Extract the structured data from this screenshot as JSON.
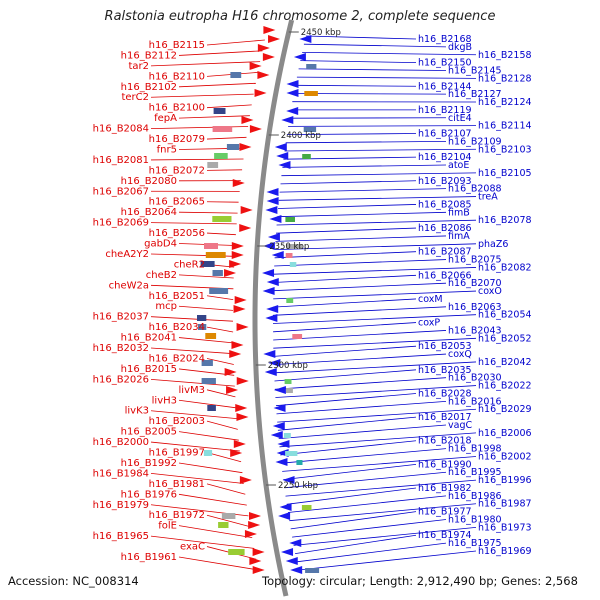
{
  "title": "Ralstonia eutropha H16 chromosome 2, complete sequence",
  "footer": {
    "accession": "Accession: NC_008314",
    "topology": "Topology: circular; Length: 2,912,490 bp; Genes: 2,568"
  },
  "colors": {
    "forward_label": "#dd0000",
    "reverse_label": "#0000cc",
    "forward_arrow": "#ee1111",
    "reverse_arrow": "#1a1aee",
    "backbone": "#8a8a8a",
    "tick_label": "#222222"
  },
  "ticks": [
    {
      "label": "2450 kbp"
    },
    {
      "label": "2400 kbp"
    },
    {
      "label": "2350 kbp"
    },
    {
      "label": "2300 kbp"
    },
    {
      "label": "2250 kbp"
    }
  ],
  "forward_labels": [
    "h16_B2115",
    "h16_B2112",
    "tar2",
    "h16_B2110",
    "h16_B2102",
    "terC2",
    "h16_B2100",
    "fepA",
    "h16_B2084",
    "h16_B2079",
    "fnr5",
    "h16_B2081",
    "h16_B2072",
    "h16_B2080",
    "h16_B2067",
    "h16_B2065",
    "h16_B2064",
    "h16_B2069",
    "h16_B2056",
    "gabD4",
    "cheA2Y2",
    "cheR2",
    "cheB2",
    "cheW2a",
    "h16_B2051",
    "mcp",
    "h16_B2037",
    "h16_B2034",
    "h16_B2041",
    "h16_B2032",
    "h16_B2024",
    "h16_B2015",
    "h16_B2026",
    "livM3",
    "livH3",
    "livK3",
    "h16_B2003",
    "h16_B2005",
    "h16_B2000",
    "h16_B1997",
    "h16_B1992",
    "h16_B1984",
    "h16_B1981",
    "h16_B1976",
    "h16_B1979",
    "h16_B1972",
    "folE",
    "h16_B1965",
    "exaC",
    "h16_B1961"
  ],
  "reverse_labels": [
    "h16_B2168",
    "dkgB",
    "h16_B2158",
    "h16_B2150",
    "h16_B2145",
    "h16_B2128",
    "h16_B2144",
    "h16_B2127",
    "h16_B2124",
    "h16_B2119",
    "citE4",
    "h16_B2114",
    "h16_B2107",
    "h16_B2109",
    "h16_B2103",
    "h16_B2104",
    "atoE",
    "h16_B2105",
    "h16_B2093",
    "h16_B2088",
    "treA",
    "h16_B2085",
    "fimB",
    "h16_B2078",
    "h16_B2086",
    "fimA",
    "phaZ6",
    "h16_B2087",
    "h16_B2075",
    "h16_B2082",
    "h16_B2066",
    "h16_B2070",
    "coxO",
    "coxM",
    "h16_B2063",
    "h16_B2054",
    "coxP",
    "h16_B2043",
    "h16_B2052",
    "h16_B2053",
    "coxQ",
    "h16_B2042",
    "h16_B2035",
    "h16_B2030",
    "h16_B2022",
    "h16_B2028",
    "h16_B2016",
    "h16_B2029",
    "h16_B2017",
    "vagC",
    "h16_B2006",
    "h16_B2018",
    "h16_B1998",
    "h16_B2002",
    "h16_B1990",
    "h16_B1995",
    "h16_B1996",
    "h16_B1982",
    "h16_B1986",
    "h16_B1987",
    "h16_B1977",
    "h16_B1980",
    "h16_B1973",
    "h16_B1974",
    "h16_B1975",
    "h16_B1969"
  ]
}
